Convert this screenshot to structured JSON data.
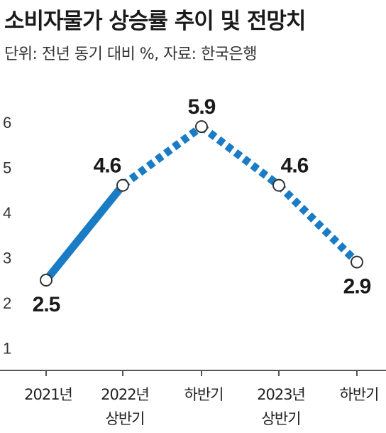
{
  "header": {
    "title": "소비자물가 상승률 추이 및 전망치",
    "subtitle": "단위: 전년 동기 대비 %, 자료: 한국은행"
  },
  "colors": {
    "line": "#1a7cc4",
    "axis": "#555555",
    "marker_fill": "#ffffff",
    "marker_stroke": "#333333"
  },
  "chart_data": {
    "type": "line",
    "title": "소비자물가 상승률 추이 및 전망치",
    "categories": [
      [
        "2021년"
      ],
      [
        "2022년",
        "상반기"
      ],
      [
        "하반기"
      ],
      [
        "2023년",
        "상반기"
      ],
      [
        "하반기"
      ]
    ],
    "values": [
      2.5,
      4.6,
      5.9,
      4.6,
      2.9
    ],
    "value_labels": [
      "2.5",
      "4.6",
      "5.9",
      "4.6",
      "2.9"
    ],
    "yticks": [
      "1",
      "2",
      "3",
      "4",
      "5",
      "6"
    ],
    "ylim": [
      0.5,
      6.5
    ],
    "segment_styles": [
      "solid",
      "dashed",
      "dashed",
      "dashed"
    ],
    "label_positions": [
      "below",
      "above",
      "above",
      "above",
      "below"
    ],
    "grid": false,
    "xlabel": "",
    "ylabel": ""
  }
}
